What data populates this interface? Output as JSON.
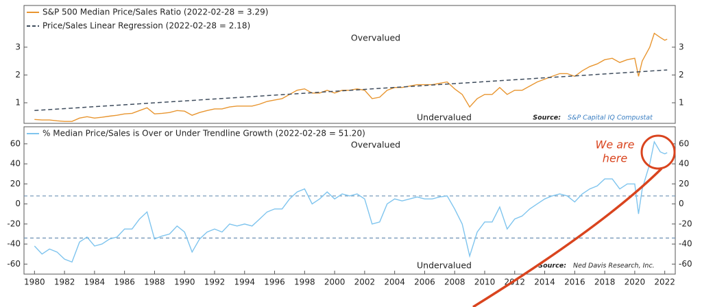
{
  "chart_data": [
    {
      "type": "line",
      "series": [
        {
          "name": "S&P 500 Median Price/Sales Ratio (2022-02-28 = 3.29)",
          "color": "#e8952f",
          "dashed": false,
          "x": [
            1980,
            1980.5,
            1981,
            1981.5,
            1982,
            1982.5,
            1983,
            1983.5,
            1984,
            1984.5,
            1985,
            1985.5,
            1986,
            1986.5,
            1987,
            1987.5,
            1988,
            1988.5,
            1989,
            1989.5,
            1990,
            1990.5,
            1991,
            1991.5,
            1992,
            1992.5,
            1993,
            1993.5,
            1994,
            1994.5,
            1995,
            1995.5,
            1996,
            1996.5,
            1997,
            1997.5,
            1998,
            1998.5,
            1999,
            1999.5,
            2000,
            2000.5,
            2001,
            2001.5,
            2002,
            2002.5,
            2003,
            2003.5,
            2004,
            2004.5,
            2005,
            2005.5,
            2006,
            2006.5,
            2007,
            2007.5,
            2008,
            2008.5,
            2009,
            2009.5,
            2010,
            2010.5,
            2011,
            2011.5,
            2012,
            2012.5,
            2013,
            2013.5,
            2014,
            2014.5,
            2015,
            2015.5,
            2016,
            2016.5,
            2017,
            2017.5,
            2018,
            2018.5,
            2019,
            2019.5,
            2020,
            2020.25,
            2020.5,
            2021,
            2021.3,
            2021.7,
            2022,
            2022.16
          ],
          "values": [
            0.4,
            0.38,
            0.38,
            0.35,
            0.33,
            0.33,
            0.45,
            0.5,
            0.45,
            0.48,
            0.52,
            0.55,
            0.6,
            0.62,
            0.72,
            0.82,
            0.6,
            0.62,
            0.65,
            0.72,
            0.7,
            0.55,
            0.65,
            0.72,
            0.78,
            0.78,
            0.85,
            0.88,
            0.88,
            0.88,
            0.95,
            1.05,
            1.1,
            1.15,
            1.3,
            1.45,
            1.5,
            1.35,
            1.35,
            1.45,
            1.35,
            1.45,
            1.45,
            1.5,
            1.45,
            1.15,
            1.2,
            1.45,
            1.55,
            1.55,
            1.6,
            1.65,
            1.65,
            1.65,
            1.7,
            1.75,
            1.5,
            1.3,
            0.85,
            1.15,
            1.3,
            1.3,
            1.55,
            1.3,
            1.45,
            1.45,
            1.6,
            1.75,
            1.85,
            1.95,
            2.05,
            2.05,
            1.95,
            2.15,
            2.3,
            2.4,
            2.55,
            2.6,
            2.45,
            2.55,
            2.6,
            1.95,
            2.5,
            3.0,
            3.5,
            3.35,
            3.25,
            3.29
          ]
        },
        {
          "name": "Price/Sales Linear Regression (2022-02-28 = 2.18)",
          "color": "#3d4b5c",
          "dashed": true,
          "x": [
            1980,
            2022.16
          ],
          "values": [
            0.72,
            2.18
          ]
        }
      ],
      "xlim": [
        1979.3,
        2022.7
      ],
      "ylim": [
        0.26,
        4.5
      ],
      "yticks": [
        1,
        2,
        3
      ],
      "annotations": [
        "Overvalued",
        "Undervalued"
      ],
      "source": {
        "label": "Source:",
        "text": "S&P Capital IQ Compustat"
      }
    },
    {
      "type": "line",
      "series": [
        {
          "name": "% Median Price/Sales is Over or Under Trendline Growth (2022-02-28 = 51.20)",
          "color": "#7ec4ee",
          "dashed": false,
          "x": [
            1980,
            1980.5,
            1981,
            1981.5,
            1982,
            1982.5,
            1983,
            1983.5,
            1984,
            1984.5,
            1985,
            1985.5,
            1986,
            1986.5,
            1987,
            1987.5,
            1988,
            1988.5,
            1989,
            1989.5,
            1990,
            1990.5,
            1991,
            1991.5,
            1992,
            1992.5,
            1993,
            1993.5,
            1994,
            1994.5,
            1995,
            1995.5,
            1996,
            1996.5,
            1997,
            1997.5,
            1998,
            1998.5,
            1999,
            1999.5,
            2000,
            2000.5,
            2001,
            2001.5,
            2002,
            2002.5,
            2003,
            2003.5,
            2004,
            2004.5,
            2005,
            2005.5,
            2006,
            2006.5,
            2007,
            2007.5,
            2008,
            2008.5,
            2009,
            2009.5,
            2010,
            2010.5,
            2011,
            2011.5,
            2012,
            2012.5,
            2013,
            2013.5,
            2014,
            2014.5,
            2015,
            2015.5,
            2016,
            2016.5,
            2017,
            2017.5,
            2018,
            2018.5,
            2019,
            2019.5,
            2020,
            2020.25,
            2020.5,
            2021,
            2021.3,
            2021.7,
            2022,
            2022.16
          ],
          "values": [
            -42,
            -50,
            -45,
            -48,
            -55,
            -58,
            -38,
            -33,
            -42,
            -40,
            -35,
            -33,
            -25,
            -25,
            -15,
            -8,
            -35,
            -32,
            -30,
            -22,
            -28,
            -48,
            -35,
            -28,
            -25,
            -28,
            -20,
            -22,
            -20,
            -22,
            -15,
            -8,
            -5,
            -5,
            5,
            12,
            15,
            0,
            5,
            12,
            5,
            10,
            8,
            10,
            5,
            -20,
            -18,
            0,
            5,
            3,
            5,
            7,
            5,
            5,
            7,
            8,
            -5,
            -20,
            -52,
            -28,
            -18,
            -18,
            -3,
            -25,
            -15,
            -12,
            -5,
            0,
            5,
            8,
            10,
            8,
            2,
            10,
            15,
            18,
            25,
            25,
            15,
            20,
            20,
            -10,
            15,
            40,
            62,
            52,
            50,
            51.2
          ]
        }
      ],
      "reference_lines": [
        8,
        -34
      ],
      "xlim": [
        1979.3,
        2022.7
      ],
      "ylim": [
        -70,
        77
      ],
      "yticks": [
        -60,
        -40,
        -20,
        0,
        20,
        40,
        60
      ],
      "xticks": [
        1980,
        1982,
        1984,
        1986,
        1988,
        1990,
        1992,
        1994,
        1996,
        1998,
        2000,
        2002,
        2004,
        2006,
        2008,
        2010,
        2012,
        2014,
        2016,
        2018,
        2020,
        2022
      ],
      "annotations": [
        "Overvalued",
        "Undervalued",
        "We are",
        "here"
      ],
      "source": {
        "label": "Source:",
        "text": "Ned Davis Research, Inc."
      }
    }
  ]
}
